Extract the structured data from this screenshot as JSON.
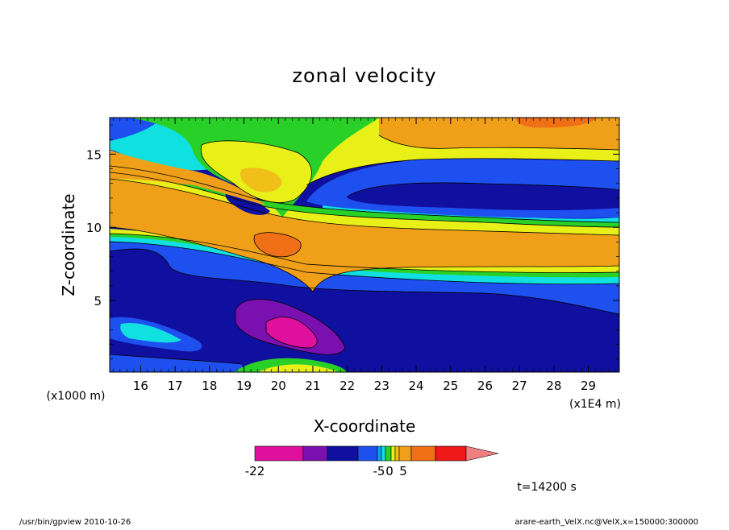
{
  "chart_data": {
    "type": "heatmap",
    "title": "zonal velocity",
    "xlabel": "X-coordinate",
    "ylabel": "Z-coordinate",
    "x_unit": "(x1E4 m)",
    "y_unit": "(x1000 m)",
    "xlim": [
      15.1,
      29.9
    ],
    "ylim": [
      0.1,
      17.5
    ],
    "x_ticks": [
      "16",
      "17",
      "18",
      "19",
      "20",
      "21",
      "22",
      "23",
      "24",
      "25",
      "26",
      "27",
      "28",
      "29"
    ],
    "y_ticks": [
      "5",
      "10",
      "15"
    ],
    "colorbar": {
      "tick_labels": [
        "-22",
        "-5",
        "0",
        "5"
      ],
      "colors": [
        "#e0109f",
        "#7a10b0",
        "#1010a0",
        "#1e50f0",
        "#10a0f0",
        "#10e0e0",
        "#28d028",
        "#e8f018",
        "#f0c018",
        "#f0a018",
        "#f07018",
        "#f01818",
        "#f08080"
      ]
    },
    "time_label": "t=14200 s",
    "footer_left": "/usr/bin/gpview   2010-10-26",
    "footer_right": "arare-earth_VelX.nc@VelX,x=150000:300000"
  }
}
